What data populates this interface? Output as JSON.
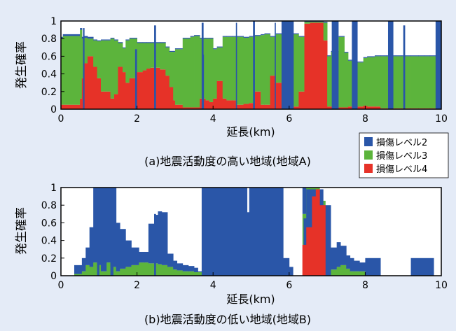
{
  "chart_data": [
    {
      "type": "area",
      "caption": "(a)地震活動度の高い地域(地域A)",
      "xlabel": "延長(km)",
      "ylabel": "発生確率",
      "xlim": [
        0,
        10
      ],
      "ylim": [
        0,
        1
      ],
      "xticks": [
        "0",
        "2",
        "4",
        "6",
        "8",
        "10"
      ],
      "yticks": [
        "0",
        "0.2",
        "0.4",
        "0.6",
        "0.8",
        "1"
      ],
      "grid": false,
      "x_edges": [
        0,
        0.05,
        0.5,
        0.55,
        0.6,
        0.7,
        0.85,
        0.95,
        1.05,
        1.3,
        1.4,
        1.5,
        1.62,
        1.7,
        1.8,
        2.0,
        2.15,
        2.25,
        2.35,
        2.45,
        2.6,
        2.75,
        2.85,
        2.95,
        3.0,
        3.2,
        3.4,
        3.5,
        3.65,
        3.8,
        3.9,
        4.0,
        4.1,
        4.25,
        4.35,
        4.5,
        4.6,
        4.8,
        4.95,
        5.1,
        5.25,
        5.35,
        5.5,
        5.65,
        5.8,
        6.0,
        6.1,
        6.25,
        6.4,
        6.55,
        6.7,
        6.9,
        7.0,
        7.05,
        7.1,
        7.15,
        7.3,
        7.45,
        7.55,
        7.7,
        7.8,
        7.95,
        8.05,
        8.25,
        8.4,
        8.55,
        8.65,
        8.8,
        8.95,
        9.05,
        9.2,
        9.4,
        9.55,
        9.7,
        9.85,
        10.0
      ],
      "series": [
        {
          "name": "損傷レベル4",
          "color": "#e63228",
          "values": [
            0.05,
            0.05,
            0.12,
            0.35,
            0.52,
            0.6,
            0.48,
            0.35,
            0.2,
            0.12,
            0.17,
            0.48,
            0.42,
            0.3,
            0.35,
            0.42,
            0.44,
            0.46,
            0.47,
            0.47,
            0.45,
            0.38,
            0.25,
            0.1,
            0.05,
            0.02,
            0.02,
            0.02,
            0.12,
            0.1,
            0.08,
            0.12,
            0.32,
            0.12,
            0.1,
            0.1,
            0.05,
            0.06,
            0.07,
            0.2,
            0.05,
            0.05,
            0.38,
            0.3,
            0.05,
            0.05,
            0.03,
            0.2,
            0.97,
            0.98,
            0.98,
            0.78,
            0.03,
            0.03,
            0.03,
            0.03,
            0.02,
            0.02,
            0.03,
            0.03,
            0.03,
            0.04,
            0.03,
            0.03,
            0.01,
            0.01,
            0.01,
            0.01,
            0.01,
            0.01,
            0.01,
            0.01,
            0.01,
            0.01,
            0.01
          ]
        },
        {
          "name": "損傷レベル3",
          "color": "#5cb43c",
          "values": [
            0.75,
            0.78,
            0.78,
            0.45,
            0.29,
            0.2,
            0.3,
            0.42,
            0.58,
            0.68,
            0.61,
            0.27,
            0.27,
            0.48,
            0.45,
            0.33,
            0.31,
            0.29,
            0.28,
            0.28,
            0.3,
            0.32,
            0.4,
            0.55,
            0.63,
            0.78,
            0.8,
            0.81,
            0.68,
            0.7,
            0.72,
            0.56,
            0.38,
            0.7,
            0.72,
            0.72,
            0.77,
            0.75,
            0.75,
            0.63,
            0.79,
            0.8,
            0.44,
            0.55,
            0.8,
            0.8,
            0.82,
            0.62,
            0.02,
            0.01,
            0.01,
            0.2,
            0.57,
            0.57,
            0.62,
            0.62,
            0.8,
            0.62,
            0.52,
            0.5,
            0.5,
            0.54,
            0.56,
            0.57,
            0.59,
            0.59,
            0.59,
            0.59,
            0.59,
            0.59,
            0.59,
            0.59,
            0.59,
            0.59,
            0.59
          ]
        },
        {
          "name": "損傷レベル2",
          "color": "#2a56a8",
          "values": [
            0.02,
            0.02,
            0.02,
            0.02,
            0.02,
            0.02,
            0.01,
            0.01,
            0.01,
            0.01,
            0.01,
            0.01,
            0.01,
            0.01,
            0.01,
            0.01,
            0.01,
            0.01,
            0.01,
            0.01,
            0.01,
            0.01,
            0.01,
            0.01,
            0.01,
            0.01,
            0.01,
            0.01,
            0.01,
            0.01,
            0.01,
            0.01,
            0.01,
            0.01,
            0.01,
            0.01,
            0.01,
            0.01,
            0.01,
            0.01,
            0.01,
            0.01,
            0.01,
            0.01,
            0.01,
            0.01,
            0.01,
            0.01,
            0.01,
            0.01,
            0.01,
            0.01,
            0.01,
            0.01,
            0.01,
            0.01,
            0.01,
            0.01,
            0.01,
            0.01,
            0.01,
            0.01,
            0.01,
            0.01,
            0.01,
            0.01,
            0.01,
            0.01,
            0.01,
            0.01,
            0.01,
            0.01,
            0.01,
            0.01,
            0.01
          ]
        }
      ],
      "spikes": [
        {
          "x": 0.58,
          "w": 0.04,
          "value": 0.92
        },
        {
          "x": 1.95,
          "w": 0.05,
          "value": 0.68
        },
        {
          "x": 2.45,
          "w": 0.05,
          "value": 0.95
        },
        {
          "x": 3.7,
          "w": 0.05,
          "value": 0.98
        },
        {
          "x": 3.72,
          "w": 0.04,
          "value": 0.62
        },
        {
          "x": 4.6,
          "w": 0.03,
          "value": 0.98
        },
        {
          "x": 5.05,
          "w": 0.05,
          "value": 1.0
        },
        {
          "x": 5.62,
          "w": 0.03,
          "value": 0.98
        },
        {
          "x": 6.0,
          "w": 0.05,
          "value": 0.95
        },
        {
          "x": 7.15,
          "w": 0.1,
          "value": 1.0
        },
        {
          "x": 7.65,
          "w": 0.1,
          "value": 0.95
        },
        {
          "x": 9.0,
          "w": 0.05,
          "value": 0.95
        },
        {
          "x": 9.88,
          "w": 0.1,
          "value": 0.97
        }
      ],
      "blocks": [
        {
          "x0": 5.8,
          "x1": 6.12,
          "value": 1.0
        },
        {
          "x0": 7.12,
          "x1": 7.3,
          "value": 1.0
        },
        {
          "x0": 7.65,
          "x1": 7.8,
          "value": 1.0
        },
        {
          "x0": 8.6,
          "x1": 8.74,
          "value": 1.0
        },
        {
          "x0": 9.85,
          "x1": 10.0,
          "value": 1.0
        }
      ]
    },
    {
      "type": "area",
      "caption": "(b)地震活動度の低い地域(地域B)",
      "xlabel": "延長(km)",
      "ylabel": "発生確率",
      "xlim": [
        0,
        10
      ],
      "ylim": [
        0,
        1
      ],
      "xticks": [
        "0",
        "2",
        "4",
        "6",
        "8",
        "10"
      ],
      "yticks": [
        "0",
        "0.2",
        "0.4",
        "0.6",
        "0.8",
        "1"
      ],
      "grid": false,
      "x_edges": [
        0.35,
        0.55,
        0.65,
        0.75,
        0.85,
        0.95,
        1.05,
        1.2,
        1.3,
        1.45,
        1.55,
        1.7,
        1.85,
        2.05,
        2.2,
        2.3,
        2.45,
        2.55,
        2.65,
        2.8,
        2.95,
        3.05,
        3.2,
        3.35,
        3.5,
        3.6,
        3.7,
        3.75,
        4.0,
        4.3,
        4.6,
        4.75,
        4.9,
        5.0,
        5.25,
        5.5,
        5.8,
        6.0,
        6.1,
        6.25,
        6.3,
        6.35,
        6.45,
        6.6,
        6.7,
        6.8,
        6.95,
        7.1,
        7.25,
        7.35,
        7.5,
        7.6,
        7.7,
        7.85,
        8.0,
        8.1,
        8.4,
        9.0,
        9.2,
        9.8,
        10.0
      ],
      "series": [
        {
          "name": "損傷レベル4",
          "color": "#e63228",
          "values": [
            0,
            0,
            0,
            0,
            0,
            0,
            0,
            0,
            0,
            0,
            0,
            0,
            0,
            0,
            0,
            0,
            0,
            0,
            0,
            0,
            0,
            0,
            0,
            0,
            0,
            0,
            0,
            0,
            0,
            0,
            0,
            0,
            0,
            0,
            0,
            0,
            0,
            0,
            0,
            0,
            0,
            0.35,
            0.55,
            0.9,
            0.98,
            0.8,
            0,
            0,
            0,
            0,
            0,
            0,
            0,
            0,
            0,
            0,
            0,
            0,
            0,
            0
          ]
        },
        {
          "name": "損傷レベル3",
          "color": "#5cb43c",
          "values": [
            0.02,
            0.05,
            0.12,
            0.1,
            0.15,
            0.12,
            0.05,
            0.15,
            0.1,
            0.05,
            0.08,
            0.1,
            0.12,
            0.15,
            0.15,
            0.14,
            0.14,
            0.13,
            0.12,
            0.1,
            0.07,
            0.06,
            0.05,
            0.05,
            0.04,
            0.04,
            0.04,
            0.0,
            0.0,
            0.0,
            0.0,
            0.0,
            0.0,
            0.0,
            0.0,
            0.0,
            0.0,
            0.0,
            0.0,
            0.0,
            0.0,
            0.35,
            0.45,
            0.1,
            0.02,
            0.05,
            0.1,
            0.07,
            0.1,
            0.12,
            0.08,
            0.05,
            0.05,
            0.05,
            0.0,
            0.0,
            0.0,
            0.0,
            0.0,
            0.0
          ]
        },
        {
          "name": "損傷レベル2",
          "color": "#2a56a8",
          "values": [
            0.1,
            0.15,
            0.2,
            0.45,
            0.85,
            0.88,
            1.0,
            0.95,
            1.0,
            0.55,
            0.45,
            0.3,
            0.2,
            0.12,
            0.12,
            0.45,
            0.55,
            0.6,
            0.6,
            0.15,
            0.1,
            0.08,
            0.07,
            0.06,
            0.05,
            0.01,
            0.01,
            0.0,
            1.0,
            1.0,
            1.0,
            0.7,
            0.5,
            1.0,
            1.0,
            1.0,
            0.2,
            0.1,
            0.0,
            0.0,
            0.0,
            0.3,
            0.0,
            0.0,
            0.0,
            0.0,
            0.2,
            0.25,
            0.28,
            0.22,
            0.15,
            0.15,
            0.12,
            0.1,
            0.2,
            0.2,
            0.0,
            0.0,
            0.2,
            0.0
          ]
        }
      ],
      "spikes": [
        {
          "x": 0.95,
          "w": 0.06,
          "value": 0.98
        },
        {
          "x": 1.3,
          "w": 0.08,
          "value": 1.0
        },
        {
          "x": 2.45,
          "w": 0.05,
          "value": 0.7
        },
        {
          "x": 4.95,
          "w": 0.05,
          "value": 1.0
        },
        {
          "x": 6.38,
          "w": 0.1,
          "value": 0.65
        }
      ],
      "blocks": [
        {
          "x0": 3.7,
          "x1": 4.9,
          "value": 1.0
        },
        {
          "x0": 4.88,
          "x1": 5.0,
          "value": 0.72
        },
        {
          "x0": 5.0,
          "x1": 5.85,
          "value": 1.0
        },
        {
          "x0": 6.45,
          "x1": 6.9,
          "value": 0.98
        },
        {
          "x0": 6.9,
          "x1": 7.1,
          "value": 0.8
        }
      ]
    }
  ],
  "legend": {
    "items": [
      {
        "label": "損傷レベル2",
        "color": "#2a56a8"
      },
      {
        "label": "損傷レベル3",
        "color": "#5cb43c"
      },
      {
        "label": "損傷レベル4",
        "color": "#e63228"
      }
    ]
  }
}
